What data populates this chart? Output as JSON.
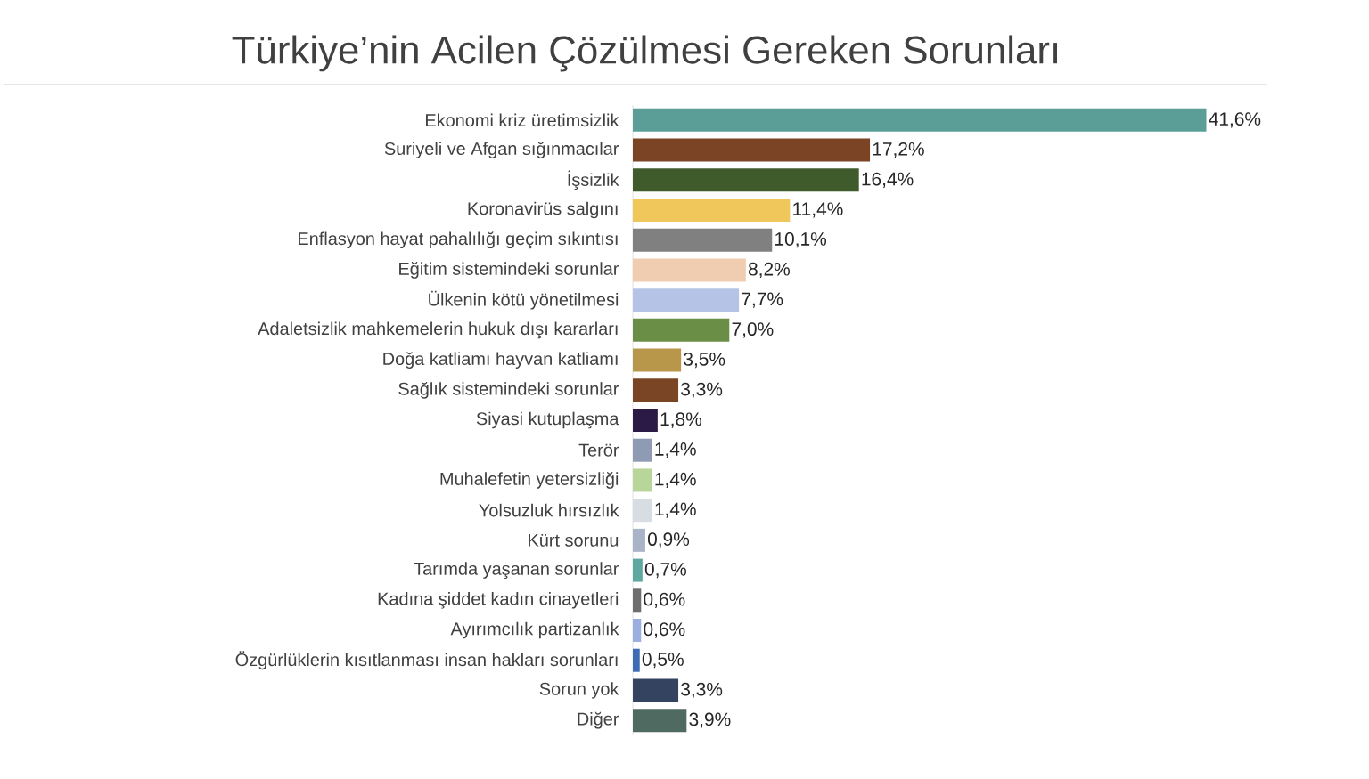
{
  "chart_data": {
    "type": "bar",
    "orientation": "horizontal",
    "title": "Türkiye’nin Acilen Çözülmesi Gereken Sorunları",
    "categories": [
      "Ekonomi kriz üretimsizlik",
      "Suriyeli ve Afgan sığınmacılar",
      "İşsizlik",
      "Koronavirüs salgını",
      "Enflasyon hayat pahalılığı geçim sıkıntısı",
      "Eğitim sistemindeki sorunlar",
      "Ülkenin kötü yönetilmesi",
      "Adaletsizlik mahkemelerin hukuk dışı kararları",
      "Doğa katliamı hayvan katliamı",
      "Sağlık sistemindeki sorunlar",
      "Siyasi kutuplaşma",
      "Terör",
      "Muhalefetin yetersizliği",
      "Yolsuzluk hırsızlık",
      "Kürt sorunu",
      "Tarımda yaşanan sorunlar",
      "Kadına şiddet kadın cinayetleri",
      "Ayırımcılık partizanlık",
      "Özgürlüklerin kısıtlanması insan hakları sorunları",
      "Sorun yok",
      "Diğer"
    ],
    "values": [
      41.6,
      17.2,
      16.4,
      11.4,
      10.1,
      8.2,
      7.7,
      7.0,
      3.5,
      3.3,
      1.8,
      1.4,
      1.4,
      1.4,
      0.9,
      0.7,
      0.6,
      0.6,
      0.5,
      3.3,
      3.9
    ],
    "value_labels": [
      "41,6%",
      "17,2%",
      "16,4%",
      "11,4%",
      "10,1%",
      "8,2%",
      "7,7%",
      "7,0%",
      "3,5%",
      "3,3%",
      "1,8%",
      "1,4%",
      "1,4%",
      "1,4%",
      "0,9%",
      "0,7%",
      "0,6%",
      "0,6%",
      "0,5%",
      "3,3%",
      "3,9%"
    ],
    "colors": [
      "#5b9e98",
      "#7b4424",
      "#3f5a2b",
      "#f0c75a",
      "#808080",
      "#f0cdb0",
      "#b4c3e6",
      "#6a8e45",
      "#b8964a",
      "#7a4525",
      "#2b1a46",
      "#8f9bb3",
      "#b9d69a",
      "#d8dce3",
      "#aab4c8",
      "#5fa8a0",
      "#6e6e6e",
      "#9daee0",
      "#3e6cb4",
      "#34435f",
      "#4f6a60"
    ]
  }
}
